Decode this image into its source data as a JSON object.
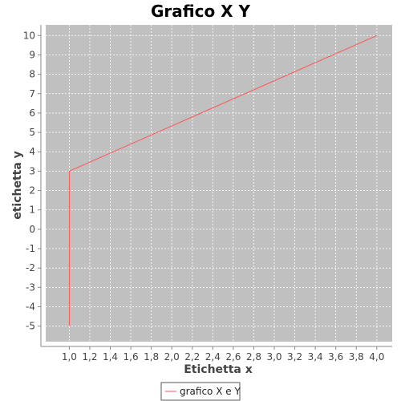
{
  "chart_data": {
    "type": "line",
    "title": "Grafico X Y",
    "xlabel": "Etichetta x",
    "ylabel": "etichetta y",
    "xlim": [
      0.77,
      4.15
    ],
    "ylim": [
      -5.8,
      10.55
    ],
    "x_ticks": [
      "1,0",
      "1,2",
      "1,4",
      "1,6",
      "1,8",
      "2,0",
      "2,2",
      "2,4",
      "2,6",
      "2,8",
      "3,0",
      "3,2",
      "3,4",
      "3,6",
      "3,8",
      "4,0"
    ],
    "x_tick_values": [
      1.0,
      1.2,
      1.4,
      1.6,
      1.8,
      2.0,
      2.2,
      2.4,
      2.6,
      2.8,
      3.0,
      3.2,
      3.4,
      3.6,
      3.8,
      4.0
    ],
    "y_ticks": [
      "-5",
      "-4",
      "-3",
      "-2",
      "-1",
      "0",
      "1",
      "2",
      "3",
      "4",
      "5",
      "6",
      "7",
      "8",
      "9",
      "10"
    ],
    "y_tick_values": [
      -5,
      -4,
      -3,
      -2,
      -1,
      0,
      1,
      2,
      3,
      4,
      5,
      6,
      7,
      8,
      9,
      10
    ],
    "grid": true,
    "legend_position": "bottom-center",
    "series": [
      {
        "name": "grafico X e Y",
        "color": "#ff5555",
        "x": [
          1.0,
          1.0,
          4.0
        ],
        "y": [
          -5,
          3,
          10
        ]
      }
    ],
    "colors": {
      "plot_background": "#c0c0c0",
      "grid": "#ffffff",
      "axis": "#888888"
    }
  }
}
